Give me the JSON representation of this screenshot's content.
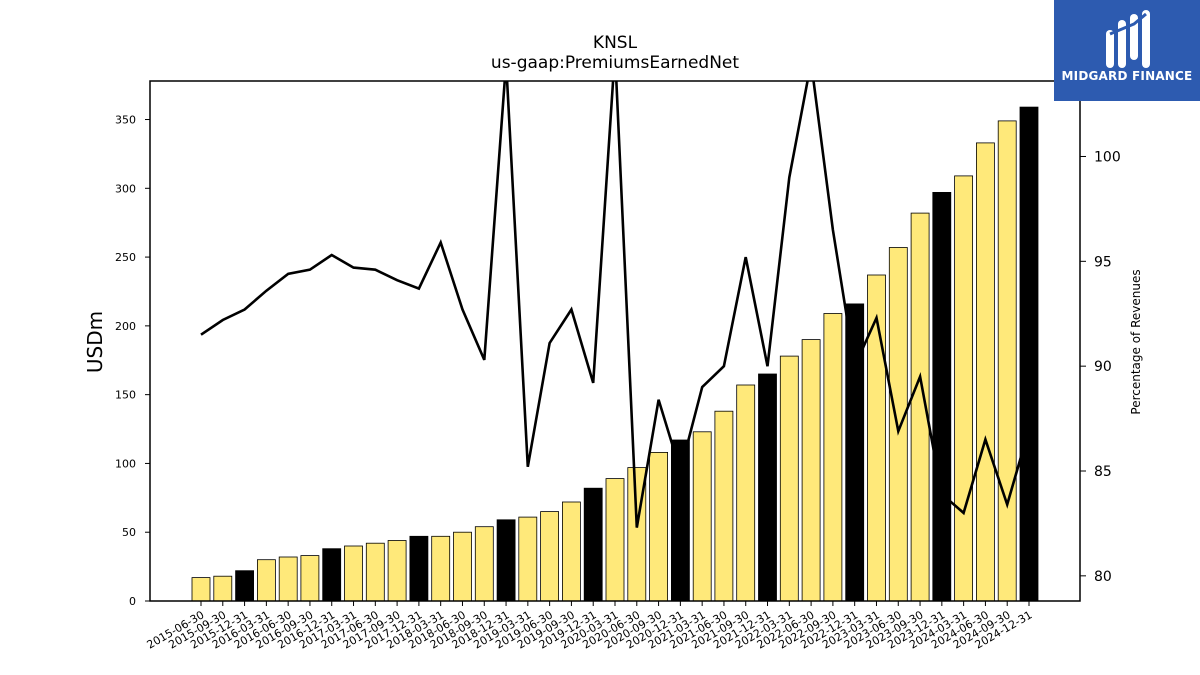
{
  "brand": {
    "name": "MIDGARD FINANCE",
    "bg_color": "#2d5bb0",
    "fg_color": "#ffffff"
  },
  "chart_data": {
    "type": "bar",
    "title": "KNSL",
    "subtitle": "us-gaap:PremiumsEarnedNet",
    "ylabel": "USDm",
    "y2label": "Percentage of Revenues",
    "ylim": [
      0,
      378
    ],
    "y2lim": [
      78.8,
      103.6
    ],
    "yticks": [
      0,
      50,
      100,
      150,
      200,
      250,
      300,
      350
    ],
    "y2ticks": [
      80,
      85,
      90,
      95,
      100
    ],
    "grid": false,
    "legend": "none",
    "categories": [
      "2015-06-30",
      "2015-09-30",
      "2015-12-31",
      "2016-03-31",
      "2016-06-30",
      "2016-09-30",
      "2016-12-31",
      "2017-03-31",
      "2017-06-30",
      "2017-09-30",
      "2017-12-31",
      "2018-03-31",
      "2018-06-30",
      "2018-09-30",
      "2018-12-31",
      "2019-03-31",
      "2019-06-30",
      "2019-09-30",
      "2019-12-31",
      "2020-03-31",
      "2020-06-30",
      "2020-09-30",
      "2020-12-31",
      "2021-03-31",
      "2021-06-30",
      "2021-09-30",
      "2021-12-31",
      "2022-03-31",
      "2022-06-30",
      "2022-09-30",
      "2022-12-31",
      "2023-03-31",
      "2023-06-30",
      "2023-09-30",
      "2023-12-31",
      "2024-03-31",
      "2024-06-30",
      "2024-09-30",
      "2024-12-31"
    ],
    "series": [
      {
        "kind": "bar",
        "axis": "left",
        "values": [
          17,
          18,
          22,
          30,
          32,
          33,
          38,
          40,
          42,
          44,
          47,
          47,
          50,
          54,
          59,
          61,
          65,
          72,
          82,
          89,
          97,
          108,
          117,
          123,
          138,
          157,
          165,
          178,
          190,
          209,
          216,
          237,
          257,
          282,
          297,
          309,
          333,
          349,
          359
        ],
        "colors": [
          "#ffe97a",
          "#ffe97a",
          "#000000",
          "#ffe97a",
          "#ffe97a",
          "#ffe97a",
          "#000000",
          "#ffe97a",
          "#ffe97a",
          "#ffe97a",
          "#000000",
          "#ffe97a",
          "#ffe97a",
          "#ffe97a",
          "#000000",
          "#ffe97a",
          "#ffe97a",
          "#ffe97a",
          "#000000",
          "#ffe97a",
          "#ffe97a",
          "#ffe97a",
          "#000000",
          "#ffe97a",
          "#ffe97a",
          "#ffe97a",
          "#000000",
          "#ffe97a",
          "#ffe97a",
          "#ffe97a",
          "#000000",
          "#ffe97a",
          "#ffe97a",
          "#ffe97a",
          "#000000",
          "#ffe97a",
          "#ffe97a",
          "#ffe97a",
          "#000000"
        ]
      },
      {
        "kind": "line",
        "axis": "right",
        "color": "#000000",
        "values": [
          91.5,
          92.2,
          92.7,
          93.6,
          94.4,
          94.6,
          95.3,
          94.7,
          94.6,
          94.1,
          93.7,
          95.9,
          92.7,
          90.3,
          104.5,
          85.2,
          91.1,
          92.7,
          89.2,
          105.0,
          82.3,
          88.4,
          85.0,
          89.0,
          90.0,
          95.2,
          90.0,
          99.0,
          104.5,
          96.5,
          90.0,
          92.3,
          86.9,
          89.5,
          83.9,
          83.0,
          86.5,
          83.4,
          87.0
        ]
      }
    ]
  }
}
